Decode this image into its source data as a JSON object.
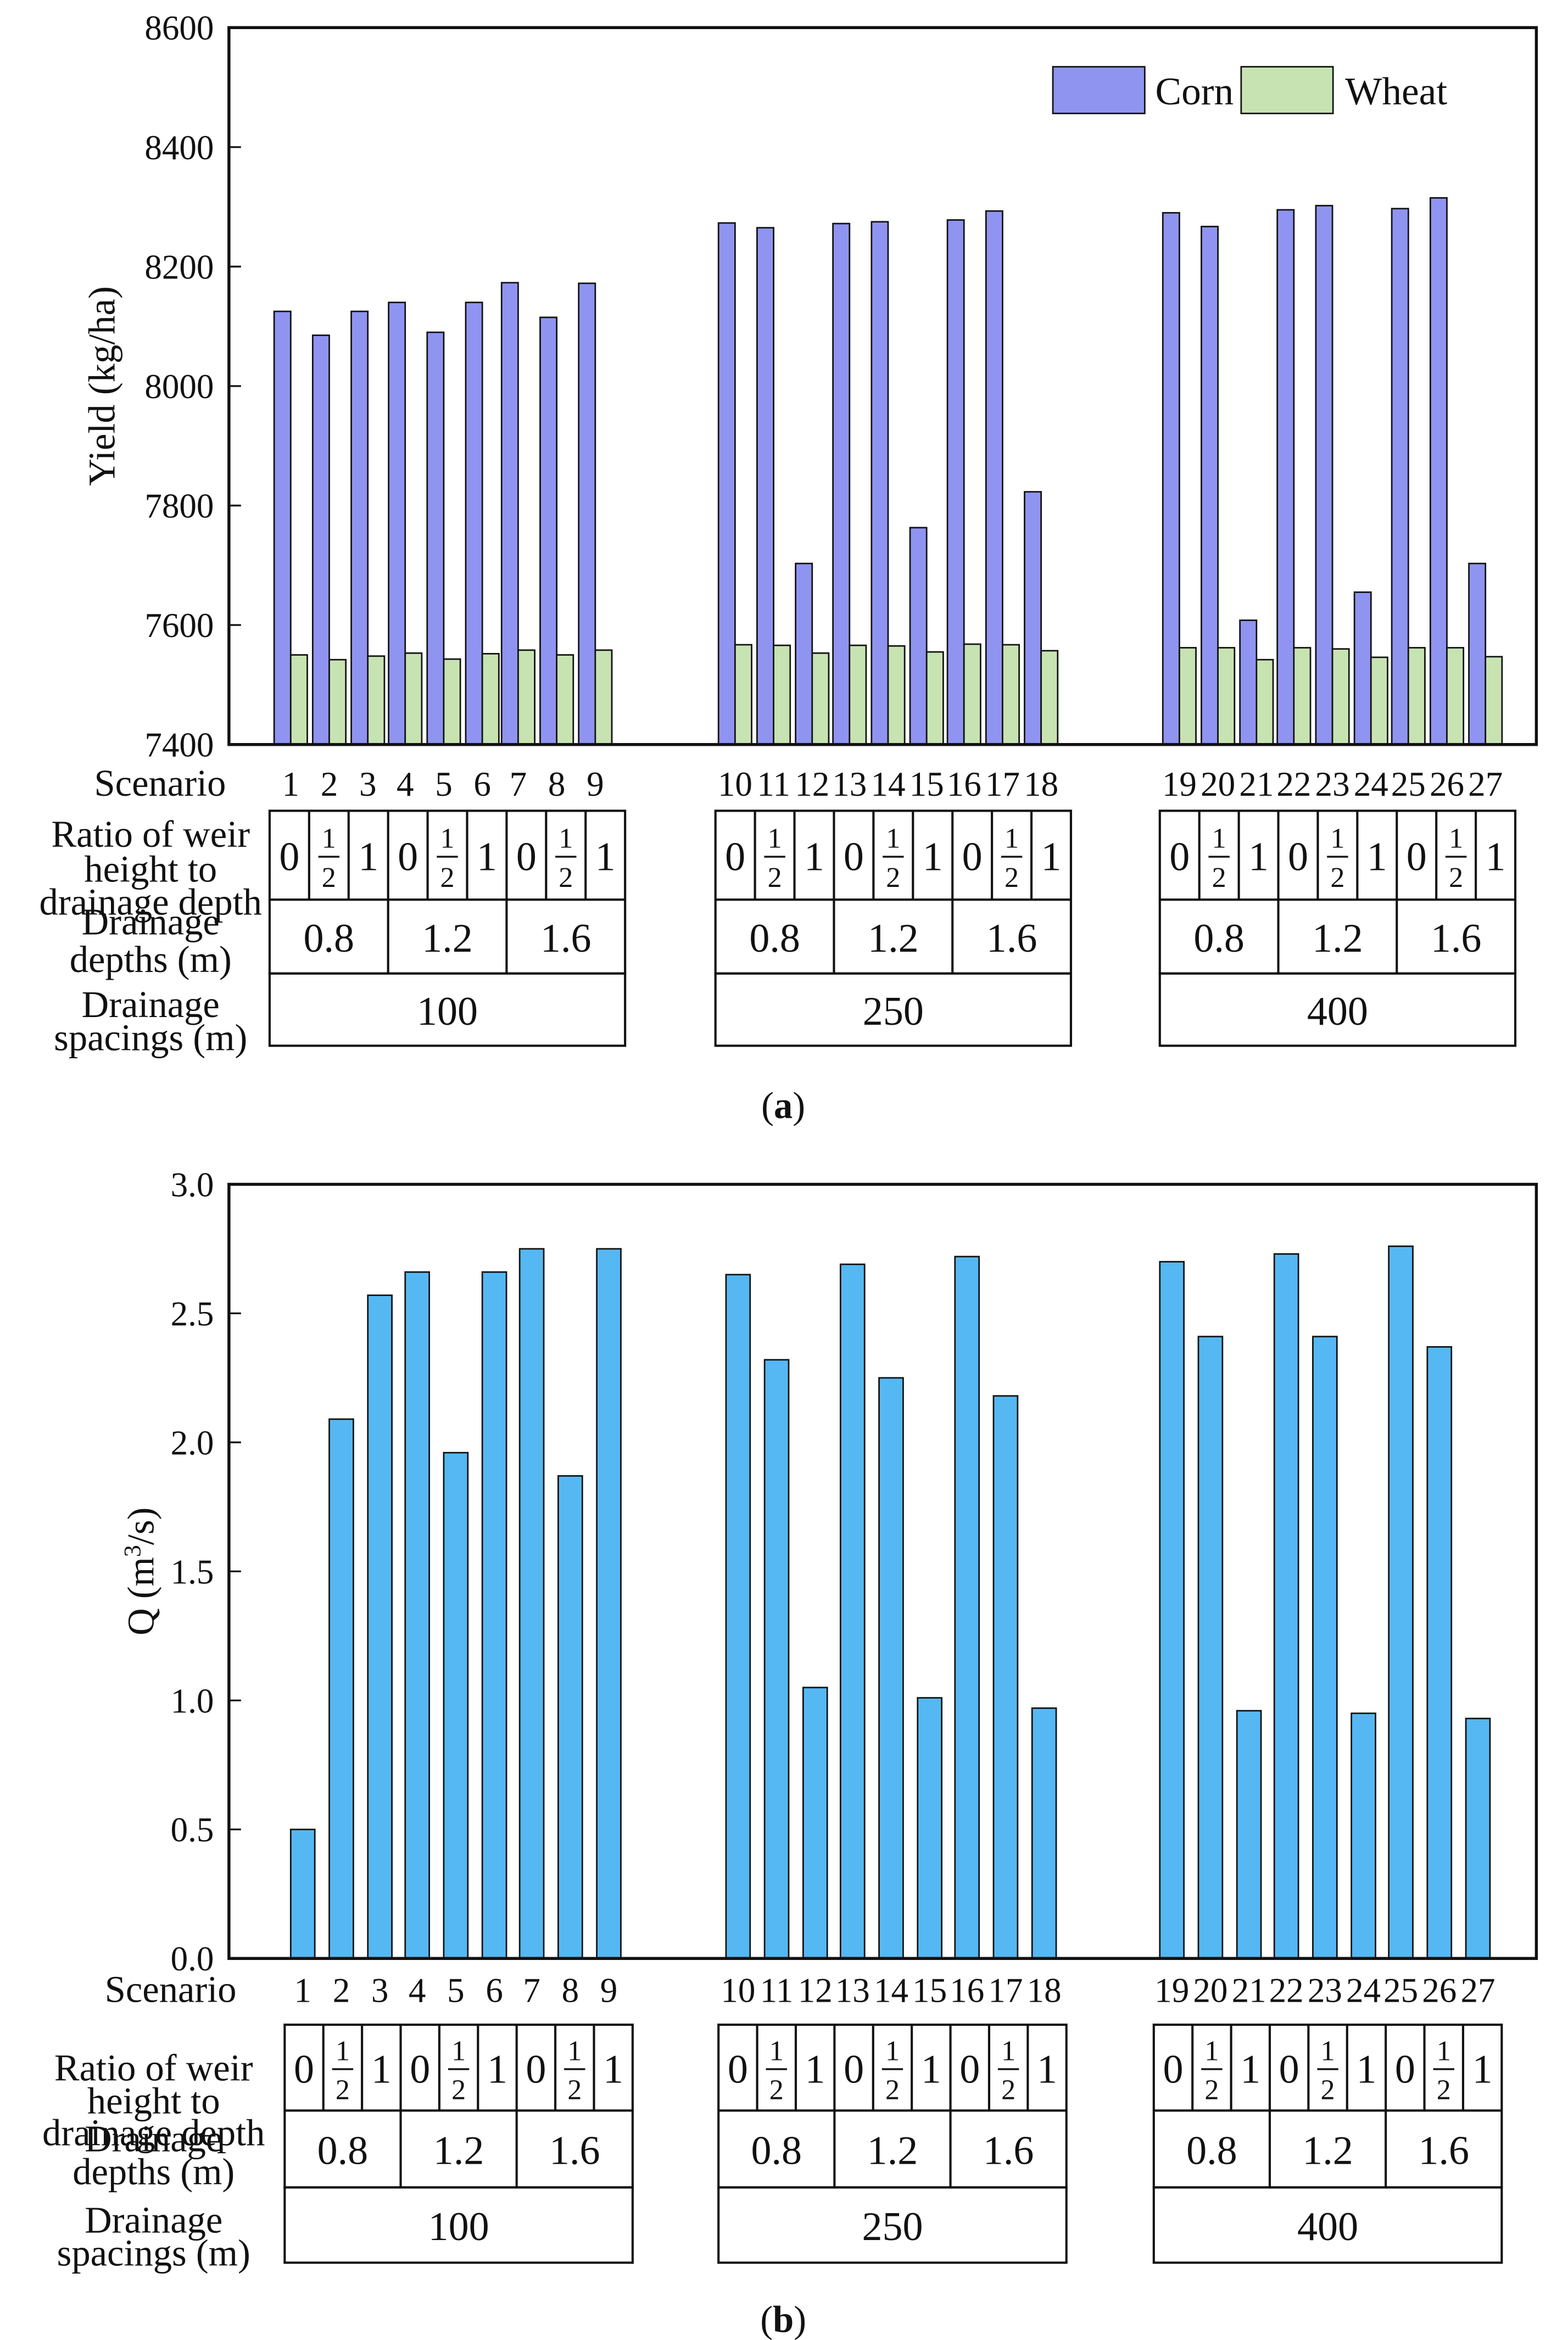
{
  "panels": {
    "a": {
      "label": "(a)"
    },
    "b": {
      "label": "(b)"
    }
  },
  "rows": {
    "scenario": "Scenario",
    "ratio": [
      "Ratio of weir",
      "height to",
      "drainage depth"
    ],
    "depths": [
      "Drainage",
      "depths (m)"
    ],
    "spacings": [
      "Drainage",
      "spacings (m)"
    ]
  },
  "ratio_values": [
    "0",
    "1/2",
    "1"
  ],
  "depth_values": [
    "0.8",
    "1.2",
    "1.6"
  ],
  "spacing_values": [
    "100",
    "250",
    "400"
  ],
  "colors": {
    "corn": "#8f94f0",
    "wheat": "#c8e3b2",
    "q": "#55b8f2"
  },
  "chart_data": [
    {
      "type": "bar",
      "title": "",
      "xlabel": "Scenario",
      "ylabel": "Yield (kg/ha)",
      "ylim": [
        7400,
        8600
      ],
      "yticks": [
        "7400",
        "7600",
        "7800",
        "8000",
        "8200",
        "8400",
        "8600"
      ],
      "categories": [
        "1",
        "2",
        "3",
        "4",
        "5",
        "6",
        "7",
        "8",
        "9",
        "10",
        "11",
        "12",
        "13",
        "14",
        "15",
        "16",
        "17",
        "18",
        "19",
        "20",
        "21",
        "22",
        "23",
        "24",
        "25",
        "26",
        "27"
      ],
      "series": [
        {
          "name": "Corn",
          "values": [
            8125,
            8085,
            8125,
            8140,
            8090,
            8140,
            8173,
            8115,
            8172,
            8273,
            8265,
            7703,
            8272,
            8275,
            7763,
            8278,
            8293,
            7823,
            8290,
            8267,
            7608,
            8295,
            8302,
            7655,
            8297,
            8315,
            7703
          ]
        },
        {
          "name": "Wheat",
          "values": [
            7550,
            7542,
            7548,
            7553,
            7543,
            7552,
            7558,
            7550,
            7558,
            7567,
            7566,
            7553,
            7566,
            7565,
            7555,
            7568,
            7567,
            7557,
            7562,
            7562,
            7542,
            7562,
            7560,
            7546,
            7562,
            7562,
            7547
          ]
        }
      ],
      "legend": "top-right"
    },
    {
      "type": "bar",
      "title": "",
      "xlabel": "Scenario",
      "ylabel": "Q (m3/s)",
      "ylim": [
        0,
        3
      ],
      "yticks": [
        "0.0",
        "0.5",
        "1.0",
        "1.5",
        "2.0",
        "2.5",
        "3.0"
      ],
      "categories": [
        "1",
        "2",
        "3",
        "4",
        "5",
        "6",
        "7",
        "8",
        "9",
        "10",
        "11",
        "12",
        "13",
        "14",
        "15",
        "16",
        "17",
        "18",
        "19",
        "20",
        "21",
        "22",
        "23",
        "24",
        "25",
        "26",
        "27"
      ],
      "series": [
        {
          "name": "Q",
          "values": [
            0.5,
            2.09,
            2.57,
            2.66,
            1.96,
            2.66,
            2.75,
            1.87,
            2.75,
            2.65,
            2.32,
            1.05,
            2.69,
            2.25,
            1.01,
            2.72,
            2.18,
            0.97,
            2.7,
            2.41,
            0.96,
            2.73,
            2.41,
            0.95,
            2.76,
            2.37,
            0.93
          ]
        }
      ]
    }
  ]
}
